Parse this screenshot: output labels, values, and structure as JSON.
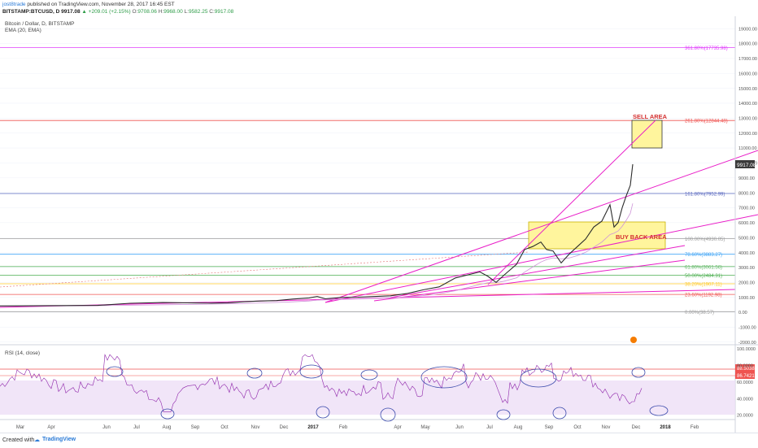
{
  "header": {
    "author": "jost8trade",
    "published": "published on TradingView.com, November 28, 2017 16:45 EST",
    "symbol": "BITSTAMP:BTCUSD, D",
    "last": "9917.08",
    "change": "▲ +209.01 (+2.15%)",
    "o_label": "O:",
    "o": "9708.06",
    "h_label": "H:",
    "h": "9968.00",
    "l_label": "L:",
    "l": "9582.25",
    "c_label": "C:",
    "c": "9917.08"
  },
  "pane_labels": {
    "title": "Bitcoin / Dollar, D, BITSTAMP",
    "indicator": "EMA (20, EMA)",
    "rsi": "RSI (14, close)"
  },
  "footer": {
    "created": "Created with",
    "brand": "TradingView"
  },
  "colors": {
    "candle": "#3a3a3a",
    "fib_magenta": "#e040fb",
    "zone": "#fff59d",
    "zone_border": "#c9b200",
    "annotation": "#d32f2f",
    "rsi": "#8e24aa",
    "rsi_band": "#ecdcf5",
    "circle": "#3949ab",
    "trend": "#e91ec8"
  },
  "chart_data": [
    {
      "type": "line",
      "title": "Bitcoin / Dollar, D, BITSTAMP",
      "x_ticks": [
        "Mar",
        "Apr",
        "Jun",
        "Jul",
        "Aug",
        "Sep",
        "Oct",
        "Nov",
        "Dec",
        "2017",
        "Feb",
        "Apr",
        "May",
        "Jun",
        "Jul",
        "Aug",
        "Sep",
        "Oct",
        "Nov",
        "Dec",
        "2018",
        "Feb"
      ],
      "y_ticks": [
        19000,
        18000,
        17000,
        16000,
        15000,
        14000,
        13000,
        12000,
        11000,
        10000,
        9000,
        8000,
        7000,
        6000,
        5000,
        4000,
        3000,
        2000,
        1000,
        0,
        -1000,
        -2000
      ],
      "ylim": [
        -2000,
        20000
      ],
      "last_price_label": "9917.08",
      "series": [
        {
          "values_approx": [
            [
              0,
              420
            ],
            [
              40,
              430
            ],
            [
              80,
              445
            ],
            [
              120,
              460
            ],
            [
              160,
              600
            ],
            [
              200,
              650
            ],
            [
              240,
              620
            ],
            [
              260,
              610
            ],
            [
              280,
              630
            ],
            [
              300,
              700
            ],
            [
              320,
              750
            ],
            [
              340,
              780
            ],
            [
              360,
              880
            ],
            [
              380,
              960
            ],
            [
              390,
              1050
            ],
            [
              400,
              900
            ],
            [
              420,
              990
            ],
            [
              440,
              1010
            ],
            [
              460,
              1050
            ],
            [
              480,
              1100
            ],
            [
              500,
              1250
            ],
            [
              520,
              1500
            ],
            [
              540,
              1700
            ],
            [
              560,
              2300
            ],
            [
              575,
              2500
            ],
            [
              590,
              2700
            ],
            [
              600,
              2400
            ],
            [
              610,
              2000
            ],
            [
              620,
              2500
            ],
            [
              635,
              3200
            ],
            [
              645,
              4200
            ],
            [
              655,
              4400
            ],
            [
              665,
              4700
            ],
            [
              672,
              4200
            ],
            [
              680,
              4100
            ],
            [
              690,
              3300
            ],
            [
              700,
              3900
            ],
            [
              710,
              4400
            ],
            [
              720,
              4900
            ],
            [
              730,
              5700
            ],
            [
              740,
              6100
            ],
            [
              750,
              7200
            ],
            [
              755,
              5700
            ],
            [
              760,
              6000
            ],
            [
              765,
              7000
            ],
            [
              770,
              7800
            ],
            [
              775,
              8500
            ],
            [
              778,
              9917
            ]
          ]
        }
      ],
      "fib_levels": [
        {
          "label": "361.80%(17735.98)",
          "value": 17735.98,
          "color": "#e040fb"
        },
        {
          "label": "261.80%(12844.48)",
          "value": 12844.48,
          "color": "#ef5350"
        },
        {
          "label": "161.80%(7952.99)",
          "value": 7952.99,
          "color": "#5c6bc0"
        },
        {
          "label": "100.00%(4930.05)",
          "value": 4930.05,
          "color": "#9e9e9e"
        },
        {
          "label": "78.60%(3883.27)",
          "value": 3883.27,
          "color": "#42a5f5"
        },
        {
          "label": "61.80%(3061.56)",
          "value": 3061.56,
          "color": "#66bb6a"
        },
        {
          "label": "50.00%(2484.31)",
          "value": 2484.31,
          "color": "#4caf50"
        },
        {
          "label": "38.20%(1907.11)",
          "value": 1907.11,
          "color": "#ffca28"
        },
        {
          "label": "23.60%(1192.98)",
          "value": 1192.98,
          "color": "#ef5350"
        },
        {
          "label": "0.00%(38.57)",
          "value": 38.57,
          "color": "#9e9e9e"
        }
      ],
      "annotations": [
        "SELL AREA",
        "BUY BACK AREA"
      ]
    },
    {
      "type": "line",
      "title": "RSI (14, close)",
      "y_ticks": [
        100.0,
        80.0,
        60.0,
        40.0,
        20.0
      ],
      "y_tick_labels": [
        "100.0000",
        "80.0000",
        "60.0000",
        "40.0000",
        "20.0000"
      ],
      "ylim": [
        15,
        105
      ],
      "value_labels": [
        "88.5038",
        "86.7421"
      ],
      "levels": [
        88.5,
        86.74
      ]
    }
  ]
}
